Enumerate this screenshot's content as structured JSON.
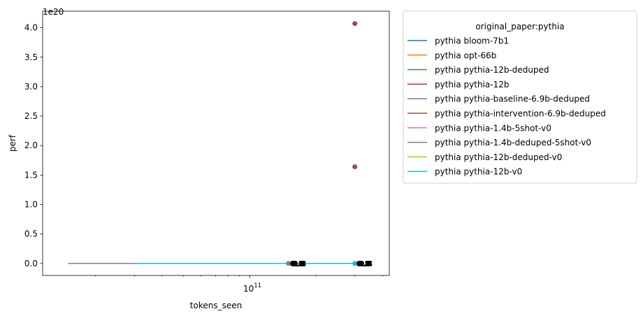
{
  "chart_data": {
    "type": "line",
    "xlabel": "tokens_seen",
    "ylabel": "perf",
    "x_scale": "log",
    "xlim": [
      11500000000,
      430000000000
    ],
    "ylim": [
      -2.04e+19,
      4.28e+20
    ],
    "x_tick_label": {
      "base": "10",
      "exponent": "11"
    },
    "y_offset_label": "1e20",
    "y_ticks": [
      0.0,
      0.5,
      1.0,
      1.5,
      2.0,
      2.5,
      3.0,
      3.5,
      4.0
    ],
    "y_tick_labels": [
      "0.0",
      "0.5",
      "1.0",
      "1.5",
      "2.0",
      "2.5",
      "3.0",
      "3.5",
      "4.0"
    ],
    "legend": {
      "title": "original_paper:pythia",
      "placement": "outside-right"
    },
    "series": [
      {
        "name": "pythia bloom-7b1",
        "color": "#1f77b4",
        "x": [
          300000000000
        ],
        "y": [
          0
        ]
      },
      {
        "name": "pythia opt-66b",
        "color": "#ff7f0e",
        "x": [
          300000000000
        ],
        "y": [
          0
        ]
      },
      {
        "name": "pythia pythia-12b-deduped",
        "color": "#2ca02c",
        "x": [
          300000000000
        ],
        "y": [
          0
        ]
      },
      {
        "name": "pythia pythia-12b",
        "color": "#d62728",
        "x": [
          300000000000
        ],
        "y": [
          0
        ]
      },
      {
        "name": "pythia pythia-baseline-6.9b-deduped",
        "color": "#9467bd",
        "x": [
          300000000000
        ],
        "y": [
          0
        ]
      },
      {
        "name": "pythia pythia-intervention-6.9b-deduped",
        "color": "#8c564b",
        "x": [
          300000000000,
          300000000000
        ],
        "y": [
          4.07e+20,
          1.64e+20
        ]
      },
      {
        "name": "pythia pythia-1.4b-5shot-v0",
        "color": "#e377c2",
        "x": [
          150000000000
        ],
        "y": [
          0
        ]
      },
      {
        "name": "pythia pythia-1.4b-deduped-5shot-v0",
        "color": "#7f7f7f",
        "x": [
          15000000000,
          150000000000
        ],
        "y": [
          0,
          0
        ]
      },
      {
        "name": "pythia pythia-12b-deduped-v0",
        "color": "#bcbd22",
        "x": [
          300000000000
        ],
        "y": [
          0
        ]
      },
      {
        "name": "pythia pythia-12b-v0",
        "color": "#17becf",
        "x": [
          30000000000,
          300000000000
        ],
        "y": [
          0,
          0
        ]
      }
    ],
    "annotations": [
      {
        "text": "0.8",
        "x": 150000000000,
        "y": 0
      },
      {
        "text": "0.8",
        "x": 300000000000,
        "y": 0
      }
    ]
  }
}
